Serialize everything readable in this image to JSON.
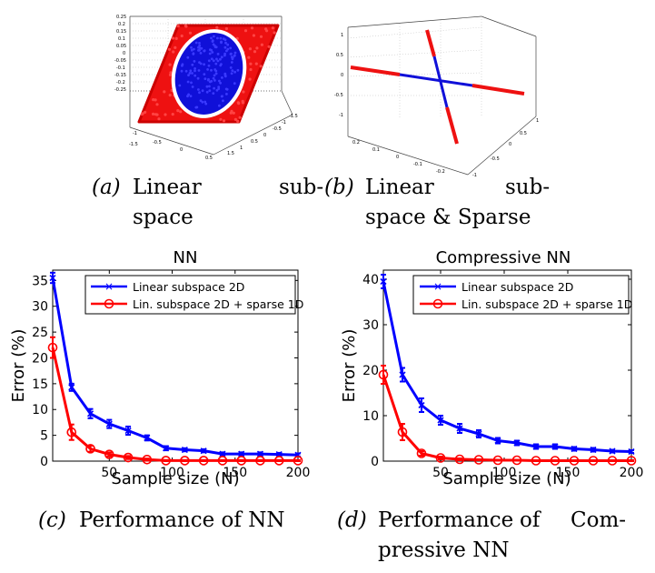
{
  "captions": {
    "a": {
      "label": "(a)",
      "line1": "Linear",
      "line1b": "sub-",
      "line2": "space"
    },
    "b": {
      "label": "(b)",
      "line1": "Linear",
      "line1b": "sub-",
      "line2": "space & Sparse"
    },
    "c": {
      "label": "(c)",
      "line1": "Performance of NN"
    },
    "d": {
      "label": "(d)",
      "line1": "Performance",
      "line1b": "of",
      "line1c": "Com-",
      "line2": "pressive NN"
    }
  },
  "colors": {
    "blue": "#0000ff",
    "red": "#ff0000",
    "fill_blue": "#1010d8",
    "fill_red": "#ee1111"
  },
  "panel_a": {
    "z_ticks": [
      "0.25",
      "0.2",
      "0.15",
      "0.1",
      "0.05",
      "0",
      "-0.05",
      "-0.1",
      "-0.15",
      "-0.2",
      "-0.25"
    ],
    "x_ticks": [
      "-1",
      "-1.5",
      "-0.5",
      "0",
      "0.5"
    ],
    "y_ticks": [
      "1.5",
      "1",
      "0.5",
      "0",
      "-0.5",
      "-1",
      "-1.5"
    ]
  },
  "panel_b": {
    "z_ticks": [
      "1",
      "0.5",
      "0",
      "-0.5",
      "-1"
    ],
    "x_ticks": [
      "0.2",
      "0.1",
      "0",
      "-0.1",
      "-0.2"
    ],
    "y_ticks": [
      "-1",
      "-0.5",
      "0",
      "0.5",
      "1"
    ]
  },
  "chart_data": [
    {
      "type": "line",
      "title": "NN",
      "xlabel": "Sample size (N)",
      "ylabel": "Error (%)",
      "xlim": [
        5,
        200
      ],
      "ylim": [
        0,
        37
      ],
      "xticks": [
        50,
        100,
        150,
        200
      ],
      "yticks": [
        0,
        5,
        10,
        15,
        20,
        25,
        30,
        35
      ],
      "legend": "top-right",
      "series": [
        {
          "name": "Linear subspace 2D",
          "color": "#0000ff",
          "marker": "x",
          "x": [
            5,
            20,
            35,
            50,
            65,
            80,
            95,
            110,
            125,
            140,
            155,
            170,
            185,
            200
          ],
          "y": [
            35.5,
            14.3,
            9.2,
            7.2,
            5.9,
            4.5,
            2.5,
            2.2,
            2.0,
            1.4,
            1.4,
            1.4,
            1.3,
            1.2
          ],
          "err": [
            1.0,
            0.7,
            0.9,
            0.8,
            0.8,
            0.5,
            0.4,
            0.3,
            0.3,
            0.3,
            0.3,
            0.3,
            0.3,
            0.3
          ]
        },
        {
          "name": "Lin. subspace 2D + sparse 1D",
          "color": "#ff0000",
          "marker": "o",
          "x": [
            5,
            20,
            35,
            50,
            65,
            80,
            95,
            110,
            125,
            140,
            155,
            170,
            185,
            200
          ],
          "y": [
            22.0,
            5.6,
            2.4,
            1.3,
            0.7,
            0.3,
            0.1,
            0.1,
            0.1,
            0.1,
            0.1,
            0.1,
            0.1,
            0.1
          ],
          "err": [
            2.0,
            1.5,
            0.6,
            0.4,
            0.3,
            0.2,
            0.1,
            0.1,
            0.1,
            0.1,
            0.1,
            0.1,
            0.1,
            0.1
          ]
        }
      ]
    },
    {
      "type": "line",
      "title": "Compressive NN",
      "xlabel": "Sample size (N)",
      "ylabel": "Error (%)",
      "xlim": [
        5,
        200
      ],
      "ylim": [
        0,
        42
      ],
      "xticks": [
        50,
        100,
        150,
        200
      ],
      "yticks": [
        0,
        10,
        20,
        30,
        40
      ],
      "legend": "top-right",
      "series": [
        {
          "name": "Linear subspace 2D",
          "color": "#0000ff",
          "marker": "x",
          "x": [
            5,
            20,
            35,
            50,
            65,
            80,
            95,
            110,
            125,
            140,
            155,
            170,
            185,
            200
          ],
          "y": [
            39.5,
            19.0,
            12.3,
            9.0,
            7.2,
            6.0,
            4.5,
            4.0,
            3.2,
            3.2,
            2.7,
            2.5,
            2.2,
            2.1
          ],
          "err": [
            1.5,
            1.5,
            1.5,
            1.0,
            1.0,
            0.8,
            0.6,
            0.5,
            0.5,
            0.5,
            0.4,
            0.4,
            0.3,
            0.3
          ]
        },
        {
          "name": "Lin. subspace 2D + sparse 1D",
          "color": "#ff0000",
          "marker": "o",
          "x": [
            5,
            20,
            35,
            50,
            65,
            80,
            95,
            110,
            125,
            140,
            155,
            170,
            185,
            200
          ],
          "y": [
            19.0,
            6.4,
            1.7,
            0.7,
            0.4,
            0.3,
            0.2,
            0.2,
            0.1,
            0.1,
            0.1,
            0.1,
            0.1,
            0.1
          ],
          "err": [
            2.0,
            1.8,
            0.5,
            0.3,
            0.2,
            0.1,
            0.1,
            0.1,
            0.1,
            0.1,
            0.1,
            0.1,
            0.1,
            0.1
          ]
        }
      ]
    }
  ]
}
